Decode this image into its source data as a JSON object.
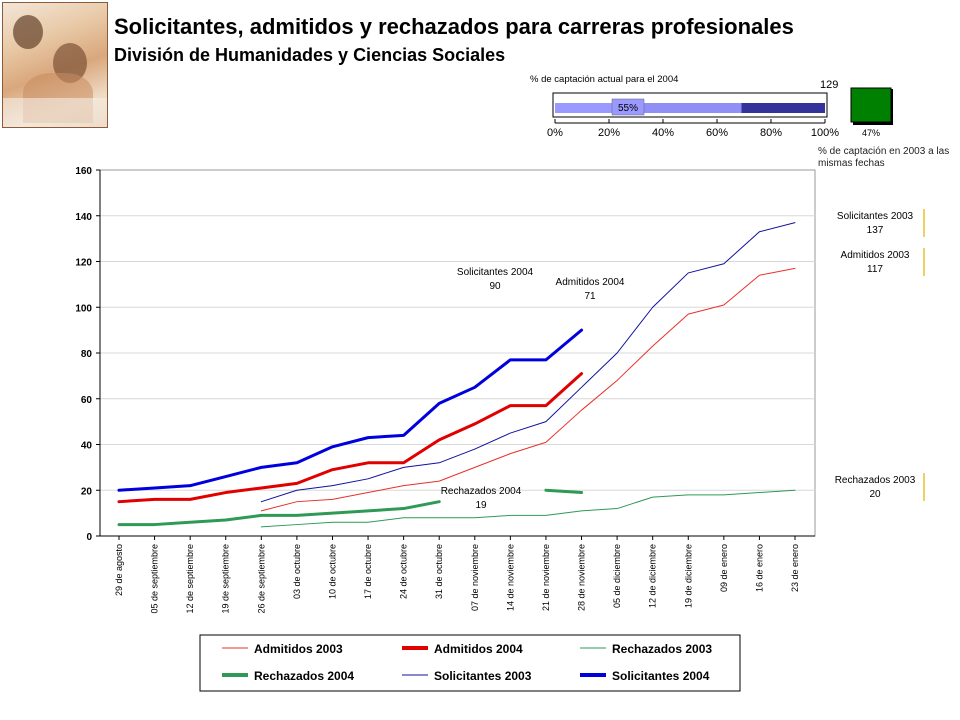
{
  "header": {
    "title": "Solicitantes, admitidos y rechazados para carreras profesionales",
    "subtitle": "División de Humanidades y Ciencias Sociales"
  },
  "capture_gauge": {
    "title": "% de captación actual para el 2004",
    "value_label": "55%",
    "value": 55,
    "ticks": [
      "0%",
      "20%",
      "40%",
      "60%",
      "80%",
      "100%"
    ],
    "count_label": "129",
    "box_label": "47%",
    "note": "% de captación en 2003 a las mismas fechas",
    "colors": {
      "light": "#9999ff",
      "dark": "#333399",
      "green": "#008000"
    }
  },
  "chart_data": {
    "type": "line",
    "categories": [
      "29 de agosto",
      "05 de septiembre",
      "12 de septiembre",
      "19 de septiembre",
      "26 de septiembre",
      "03 de octubre",
      "10 de octubre",
      "17 de octubre",
      "24 de octubre",
      "31 de octubre",
      "07 de noviembre",
      "14 de noviembre",
      "21 de noviembre",
      "28 de noviembre",
      "05 de diciembre",
      "12 de diciembre",
      "19 de diciembre",
      "09 de enero",
      "16 de enero",
      "23 de enero"
    ],
    "ylim": [
      0,
      160
    ],
    "yticks": [
      "0",
      "20",
      "40",
      "60",
      "80",
      "100",
      "120",
      "140",
      "160"
    ],
    "series": [
      {
        "name": "Admitidos 2003",
        "color": "#e8302a",
        "width": 1,
        "values": [
          null,
          null,
          null,
          null,
          11,
          15,
          16,
          19,
          22,
          24,
          30,
          36,
          41,
          55,
          68,
          83,
          97,
          101,
          114,
          117
        ]
      },
      {
        "name": "Admitidos 2004",
        "color": "#e00000",
        "width": 3,
        "values": [
          15,
          16,
          16,
          19,
          21,
          23,
          29,
          32,
          32,
          42,
          49,
          57,
          57,
          71,
          null,
          null,
          null,
          null,
          null,
          null
        ]
      },
      {
        "name": "Rechazados 2003",
        "color": "#2e9a55",
        "width": 1,
        "values": [
          null,
          null,
          null,
          null,
          4,
          5,
          6,
          6,
          8,
          8,
          8,
          9,
          9,
          11,
          12,
          17,
          18,
          18,
          19,
          20
        ]
      },
      {
        "name": "Rechazados 2004",
        "color": "#2e9a55",
        "width": 3,
        "values": [
          5,
          5,
          6,
          7,
          9,
          9,
          10,
          11,
          12,
          15,
          null,
          null,
          20,
          19,
          null,
          null,
          null,
          null,
          null,
          null
        ]
      },
      {
        "name": "Solicitantes 2003",
        "color": "#1010a0",
        "width": 1,
        "values": [
          null,
          null,
          null,
          null,
          15,
          20,
          22,
          25,
          30,
          32,
          38,
          45,
          50,
          65,
          80,
          100,
          115,
          119,
          133,
          137
        ]
      },
      {
        "name": "Solicitantes 2004",
        "color": "#0000dd",
        "width": 3,
        "values": [
          20,
          21,
          22,
          26,
          30,
          32,
          39,
          43,
          44,
          58,
          65,
          77,
          77,
          90,
          null,
          null,
          null,
          null,
          null,
          null
        ]
      }
    ],
    "annotations": [
      {
        "label": "Solicitantes 2004",
        "value": "90"
      },
      {
        "label": "Admitidos 2004",
        "value": "71"
      },
      {
        "label": "Rechazados 2004",
        "value": "19"
      }
    ],
    "side_labels": [
      {
        "label": "Solicitantes 2003",
        "value": "137"
      },
      {
        "label": "Admitidos 2003",
        "value": "117"
      },
      {
        "label": "Rechazados 2003",
        "value": "20"
      }
    ]
  }
}
